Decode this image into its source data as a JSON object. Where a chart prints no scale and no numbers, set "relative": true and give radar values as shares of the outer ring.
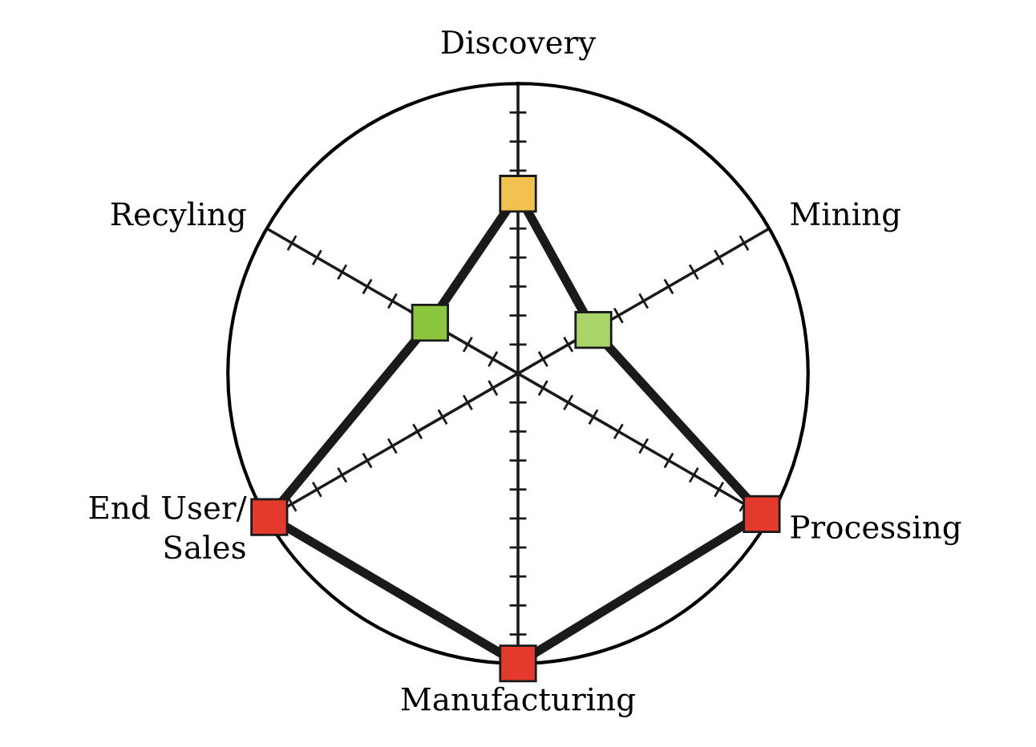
{
  "chart_data": {
    "type": "radar",
    "relative": true,
    "categories": [
      "Discovery",
      "Mining",
      "Processing",
      "Manufacturing",
      "End User/\nSales",
      "Recyling"
    ],
    "series": [
      {
        "color": "#1a1a1a",
        "colors": [
          "#f2c24f",
          "#a9d46a",
          "#e23b2e",
          "#e23b2e",
          "#e23b2e",
          "#8cc63f"
        ],
        "values": [
          0.62,
          0.3,
          0.97,
          1,
          0.99,
          0.35
        ]
      }
    ],
    "marker": "square",
    "line_style": "solid",
    "grid": true
  }
}
